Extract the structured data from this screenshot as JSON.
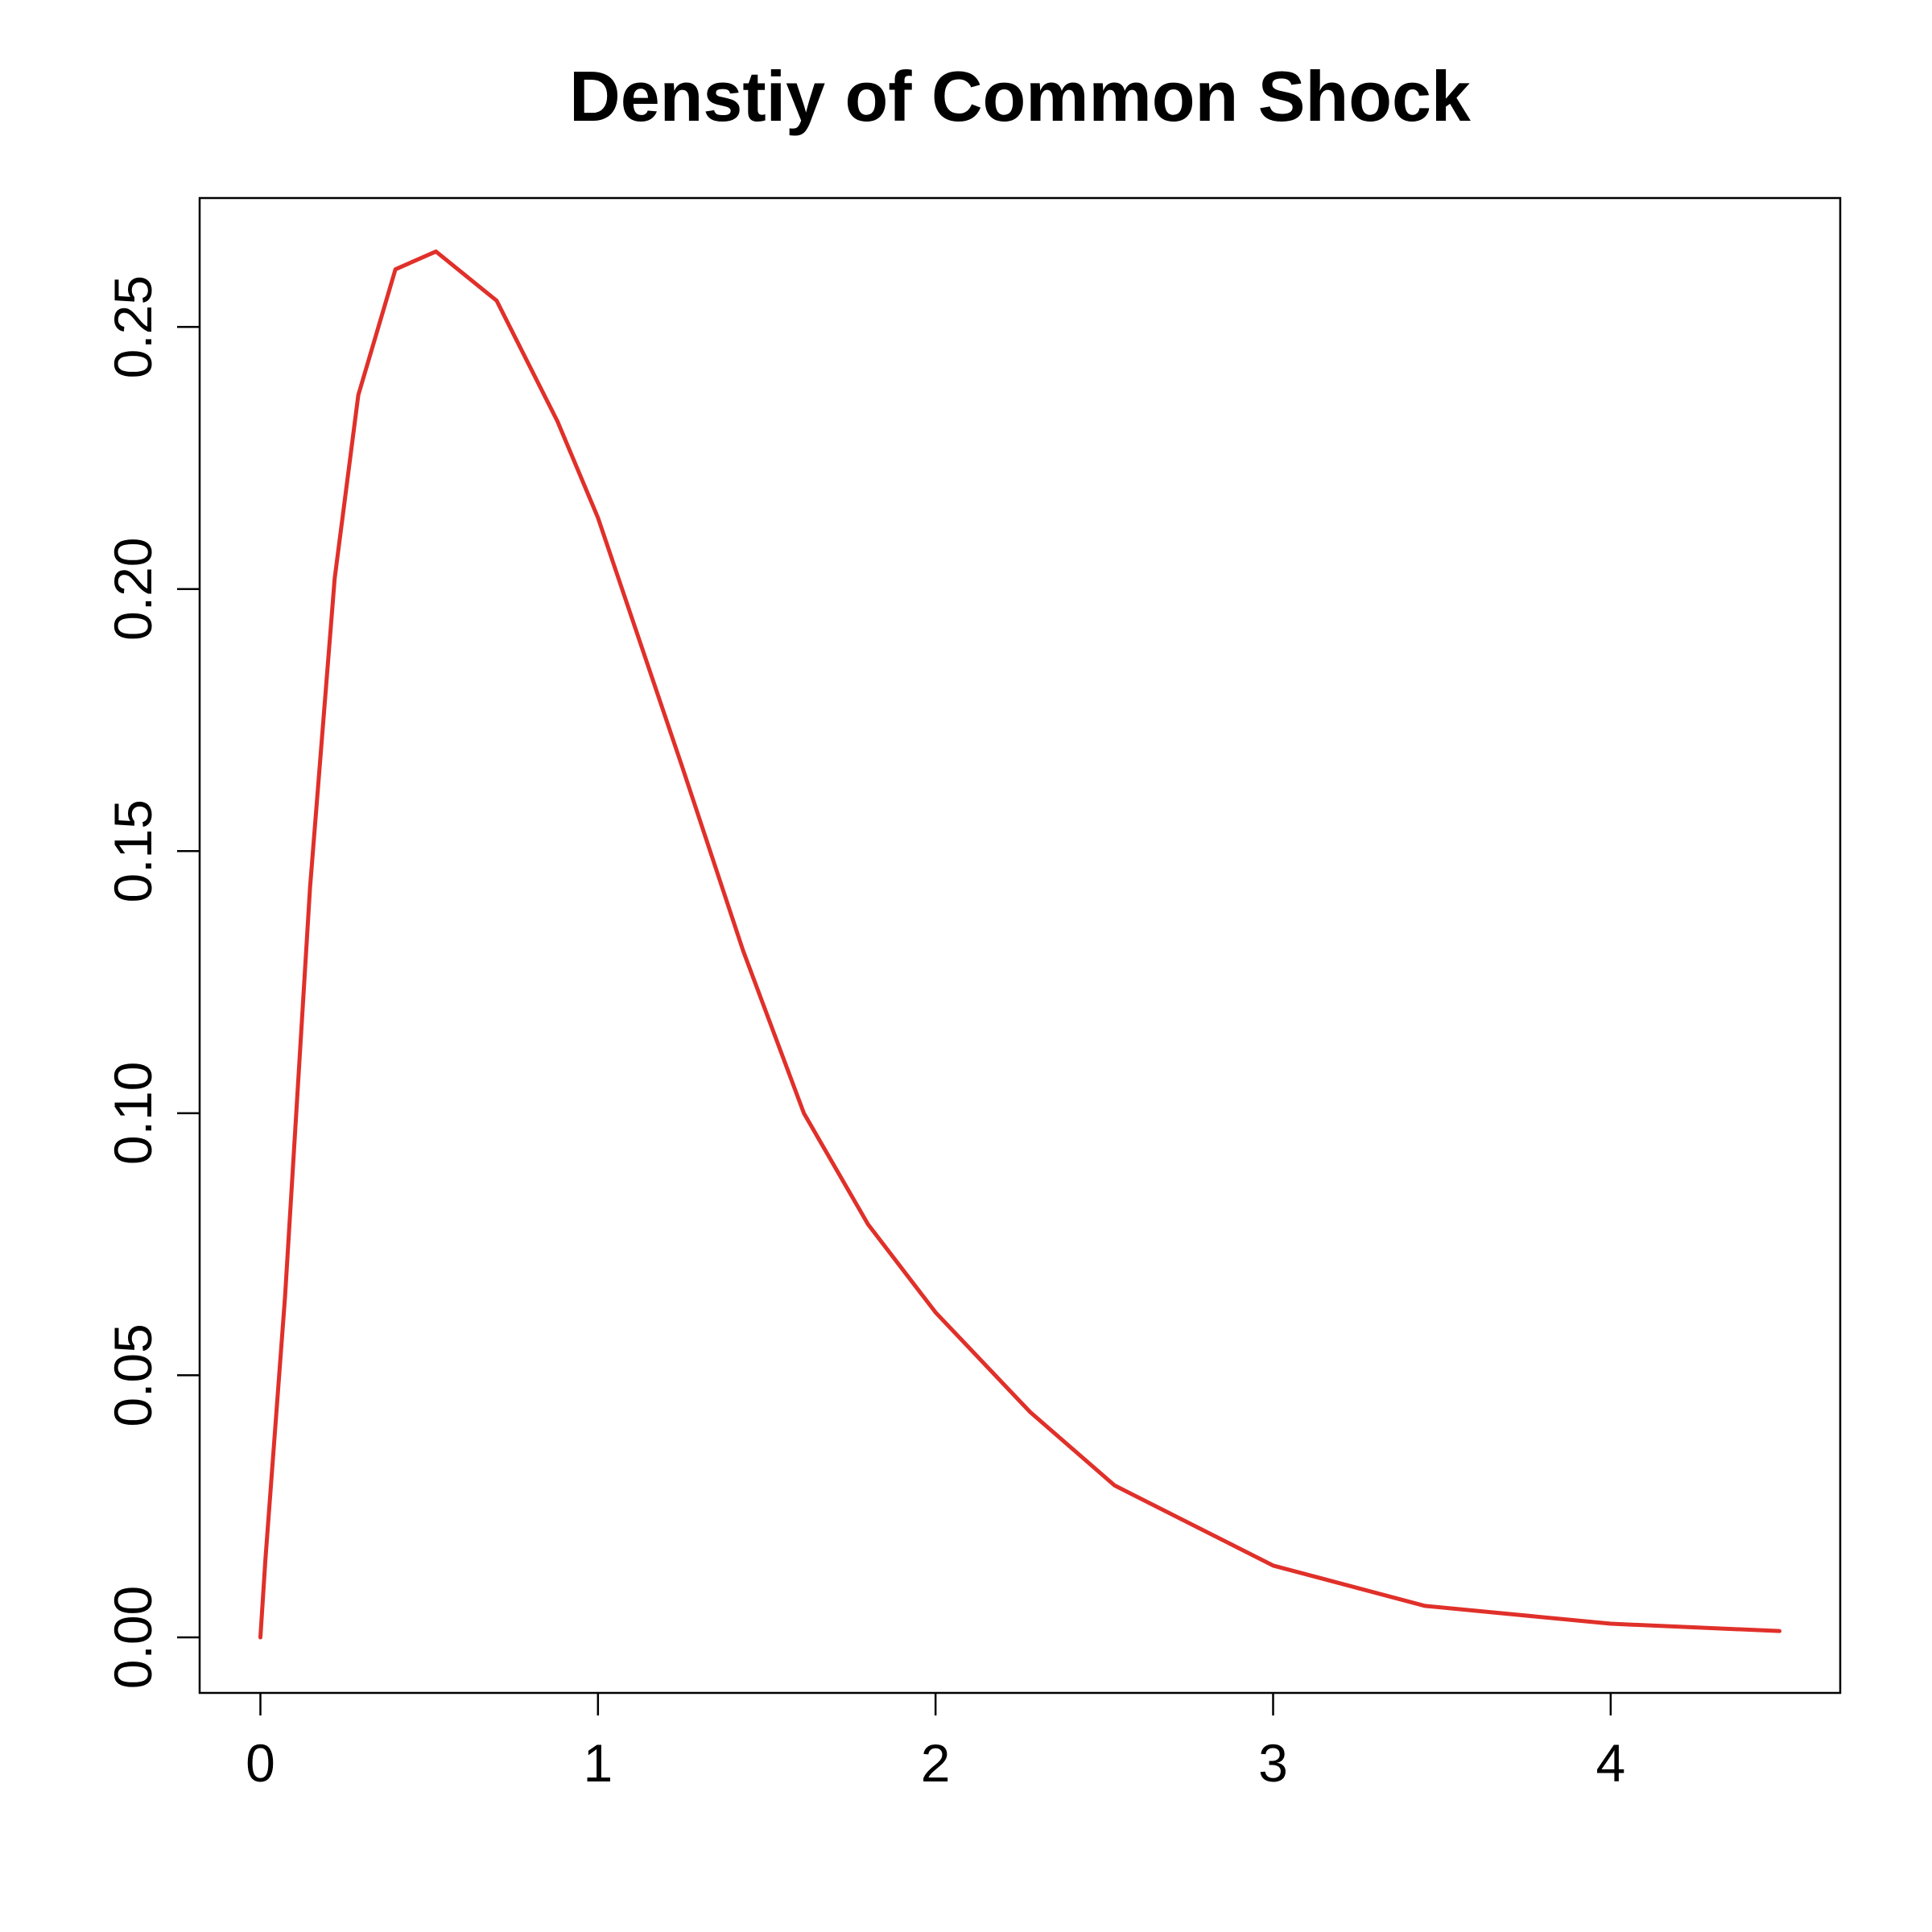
{
  "chart_data": {
    "type": "line",
    "title": "Denstiy of Common Shock",
    "x": [
      0,
      0.015,
      0.073,
      0.147,
      0.22,
      0.29,
      0.4,
      0.52,
      0.7,
      0.88,
      1.0,
      1.25,
      1.43,
      1.61,
      1.8,
      2.0,
      2.28,
      2.53,
      3.0,
      3.45,
      4.0,
      4.5
    ],
    "series": [
      {
        "color": "#e0302a",
        "values": [
          0,
          0.015,
          0.065,
          0.143,
          0.202,
          0.237,
          0.261,
          0.2644,
          0.255,
          0.232,
          0.2136,
          0.166,
          0.131,
          0.1,
          0.0788,
          0.062,
          0.043,
          0.029,
          0.0137,
          0.006,
          0.0026,
          0.0012
        ]
      }
    ],
    "xlim": [
      -0.18,
      4.68
    ],
    "ylim": [
      -0.0106,
      0.2746
    ],
    "xticks": [
      0,
      1,
      2,
      3,
      4
    ],
    "yticks": [
      {
        "value": 0,
        "label": "0.00"
      },
      {
        "value": 0.05,
        "label": "0.05"
      },
      {
        "value": 0.1,
        "label": "0.10"
      },
      {
        "value": 0.15,
        "label": "0.15"
      },
      {
        "value": 0.2,
        "label": "0.20"
      },
      {
        "value": 0.25,
        "label": "0.25"
      }
    ]
  }
}
